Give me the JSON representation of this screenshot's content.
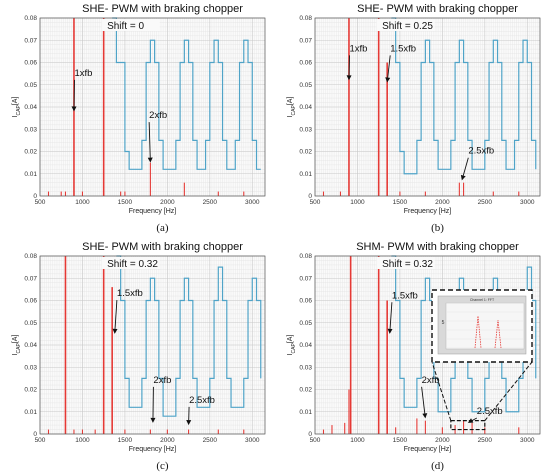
{
  "panels": [
    {
      "title": "SHE- PWM with braking chopper",
      "shift_label": "Shift = 0",
      "caption": "(a)",
      "chart_data": {
        "type": "bar",
        "xlabel": "Frequency [Hz]",
        "ylabel_main": "I",
        "ylabel_sub": "CAP",
        "ylabel_unit": "[A]",
        "xlim": [
          500,
          3150
        ],
        "ylim": [
          0,
          0.08
        ],
        "xticks": [
          500,
          1000,
          1500,
          2000,
          2500,
          3000
        ],
        "yticks": [
          0,
          0.01,
          0.02,
          0.03,
          0.04,
          0.05,
          0.06,
          0.07,
          0.08
        ],
        "grid": true,
        "spectrum_color": "#e53935",
        "limit_color": "#4fa3c7",
        "spectrum_series": [
          [
            600,
            0.002
          ],
          [
            750,
            0.002
          ],
          [
            800,
            0.002
          ],
          [
            900,
            0.08
          ],
          [
            1000,
            0.002
          ],
          [
            1250,
            0.08
          ],
          [
            1450,
            0.002
          ],
          [
            1500,
            0.002
          ],
          [
            1800,
            0.015
          ],
          [
            2200,
            0.006
          ],
          [
            2600,
            0.002
          ],
          [
            2900,
            0.002
          ]
        ],
        "limit_series": [
          [
            1350,
            0.08
          ],
          [
            1400,
            0.06
          ],
          [
            1500,
            0.02
          ],
          [
            1550,
            0.012
          ],
          [
            1650,
            0.012
          ],
          [
            1700,
            0.025
          ],
          [
            1750,
            0.06
          ],
          [
            1800,
            0.07
          ],
          [
            1850,
            0.06
          ],
          [
            1900,
            0.025
          ],
          [
            1950,
            0.012
          ],
          [
            2050,
            0.012
          ],
          [
            2100,
            0.025
          ],
          [
            2150,
            0.06
          ],
          [
            2200,
            0.07
          ],
          [
            2250,
            0.06
          ],
          [
            2300,
            0.025
          ],
          [
            2350,
            0.012
          ],
          [
            2400,
            0.012
          ],
          [
            2450,
            0.025
          ],
          [
            2500,
            0.06
          ],
          [
            2550,
            0.07
          ],
          [
            2600,
            0.06
          ],
          [
            2650,
            0.025
          ],
          [
            2700,
            0.012
          ],
          [
            2750,
            0.012
          ],
          [
            2800,
            0.025
          ],
          [
            2850,
            0.06
          ],
          [
            2900,
            0.07
          ],
          [
            2950,
            0.06
          ],
          [
            3000,
            0.025
          ],
          [
            3050,
            0.012
          ],
          [
            3100,
            0.012
          ]
        ],
        "annotations": [
          {
            "label": "1xfb",
            "x": 900,
            "y": 0.038,
            "text_x": 1000,
            "text_y": 0.054
          },
          {
            "label": "2xfb",
            "x": 1800,
            "y": 0.015,
            "text_x": 1880,
            "text_y": 0.035
          }
        ]
      }
    },
    {
      "title": "SHE- PWM with braking chopper",
      "shift_label": "Shift = 0.25",
      "caption": "(b)",
      "chart_data": {
        "type": "bar",
        "xlabel": "Frequency [Hz]",
        "ylabel_main": "I",
        "ylabel_sub": "CAP",
        "ylabel_unit": "[A]",
        "xlim": [
          500,
          3150
        ],
        "ylim": [
          0,
          0.08
        ],
        "xticks": [
          500,
          1000,
          1500,
          2000,
          2500,
          3000
        ],
        "yticks": [
          0,
          0.01,
          0.02,
          0.03,
          0.04,
          0.05,
          0.06,
          0.07,
          0.08
        ],
        "grid": true,
        "spectrum_color": "#e53935",
        "limit_color": "#4fa3c7",
        "spectrum_series": [
          [
            600,
            0.002
          ],
          [
            800,
            0.002
          ],
          [
            900,
            0.08
          ],
          [
            1250,
            0.08
          ],
          [
            1350,
            0.06
          ],
          [
            1500,
            0.002
          ],
          [
            1800,
            0.002
          ],
          [
            2200,
            0.006
          ],
          [
            2250,
            0.006
          ],
          [
            2600,
            0.002
          ],
          [
            2900,
            0.002
          ]
        ],
        "limit_series": [
          [
            1400,
            0.08
          ],
          [
            1450,
            0.06
          ],
          [
            1500,
            0.02
          ],
          [
            1550,
            0.01
          ],
          [
            1650,
            0.01
          ],
          [
            1700,
            0.025
          ],
          [
            1750,
            0.06
          ],
          [
            1800,
            0.07
          ],
          [
            1850,
            0.06
          ],
          [
            1900,
            0.025
          ],
          [
            1950,
            0.012
          ],
          [
            2050,
            0.012
          ],
          [
            2100,
            0.025
          ],
          [
            2150,
            0.06
          ],
          [
            2200,
            0.07
          ],
          [
            2250,
            0.06
          ],
          [
            2300,
            0.025
          ],
          [
            2350,
            0.012
          ],
          [
            2450,
            0.012
          ],
          [
            2500,
            0.025
          ],
          [
            2550,
            0.06
          ],
          [
            2600,
            0.07
          ],
          [
            2650,
            0.06
          ],
          [
            2700,
            0.025
          ],
          [
            2750,
            0.012
          ],
          [
            2800,
            0.012
          ],
          [
            2850,
            0.025
          ],
          [
            2900,
            0.06
          ],
          [
            2950,
            0.07
          ],
          [
            3000,
            0.06
          ],
          [
            3050,
            0.025
          ],
          [
            3100,
            0.012
          ]
        ],
        "annotations": [
          {
            "label": "1xfb",
            "x": 900,
            "y": 0.052,
            "text_x": 1000,
            "text_y": 0.065
          },
          {
            "label": "1.5xfb",
            "x": 1350,
            "y": 0.051,
            "text_x": 1480,
            "text_y": 0.065
          },
          {
            "label": "2.5xfb",
            "x": 2230,
            "y": 0.007,
            "text_x": 2400,
            "text_y": 0.019
          }
        ]
      }
    },
    {
      "title": "SHE- PWM with braking chopper",
      "shift_label": "Shift = 0.32",
      "caption": "(c)",
      "chart_data": {
        "type": "bar",
        "xlabel": "Frequency [Hz]",
        "ylabel_main": "I",
        "ylabel_sub": "CAP",
        "ylabel_unit": "[A]",
        "xlim": [
          500,
          3150
        ],
        "ylim": [
          0,
          0.08
        ],
        "xticks": [
          500,
          1000,
          1500,
          2000,
          2500,
          3000
        ],
        "yticks": [
          0,
          0.01,
          0.02,
          0.03,
          0.04,
          0.05,
          0.06,
          0.07,
          0.08
        ],
        "grid": true,
        "spectrum_color": "#e53935",
        "limit_color": "#4fa3c7",
        "spectrum_series": [
          [
            600,
            0.002
          ],
          [
            800,
            0.08
          ],
          [
            900,
            0.002
          ],
          [
            1000,
            0.002
          ],
          [
            1150,
            0.002
          ],
          [
            1250,
            0.08
          ],
          [
            1350,
            0.066
          ],
          [
            1500,
            0.002
          ],
          [
            1800,
            0.002
          ],
          [
            2000,
            0.002
          ],
          [
            2250,
            0.002
          ],
          [
            2600,
            0.002
          ],
          [
            2900,
            0.002
          ]
        ],
        "limit_series": [
          [
            1400,
            0.08
          ],
          [
            1450,
            0.06
          ],
          [
            1500,
            0.025
          ],
          [
            1550,
            0.012
          ],
          [
            1650,
            0.012
          ],
          [
            1700,
            0.025
          ],
          [
            1750,
            0.06
          ],
          [
            1800,
            0.07
          ],
          [
            1850,
            0.06
          ],
          [
            1900,
            0.025
          ],
          [
            1950,
            0.008
          ],
          [
            2050,
            0.008
          ],
          [
            2100,
            0.025
          ],
          [
            2150,
            0.06
          ],
          [
            2200,
            0.07
          ],
          [
            2250,
            0.06
          ],
          [
            2300,
            0.025
          ],
          [
            2350,
            0.012
          ],
          [
            2450,
            0.012
          ],
          [
            2500,
            0.025
          ],
          [
            2550,
            0.06
          ],
          [
            2600,
            0.075
          ],
          [
            2650,
            0.06
          ],
          [
            2700,
            0.025
          ],
          [
            2750,
            0.012
          ],
          [
            2850,
            0.012
          ],
          [
            2900,
            0.025
          ],
          [
            2950,
            0.06
          ],
          [
            3000,
            0.07
          ],
          [
            3050,
            0.06
          ],
          [
            3100,
            0.025
          ]
        ],
        "annotations": [
          {
            "label": "1.5xfb",
            "x": 1380,
            "y": 0.045,
            "text_x": 1500,
            "text_y": 0.062
          },
          {
            "label": "2xfb",
            "x": 1830,
            "y": 0.005,
            "text_x": 1930,
            "text_y": 0.023
          },
          {
            "label": "2.5xfb",
            "x": 2250,
            "y": 0.004,
            "text_x": 2350,
            "text_y": 0.014
          }
        ]
      }
    },
    {
      "title": "SHM- PWM with braking chopper",
      "shift_label": "Shift = 0.32",
      "caption": "(d)",
      "chart_data": {
        "type": "bar",
        "xlabel": "Frequency [Hz]",
        "ylabel_main": "I",
        "ylabel_sub": "CAP",
        "ylabel_unit": "[A]",
        "xlim": [
          500,
          3150
        ],
        "ylim": [
          0,
          0.08
        ],
        "xticks": [
          500,
          1000,
          1500,
          2000,
          2500,
          3000
        ],
        "yticks": [
          0,
          0.01,
          0.02,
          0.03,
          0.04,
          0.05,
          0.06,
          0.07,
          0.08
        ],
        "grid": true,
        "spectrum_color": "#e53935",
        "limit_color": "#4fa3c7",
        "spectrum_series": [
          [
            600,
            0.002
          ],
          [
            700,
            0.004
          ],
          [
            850,
            0.005
          ],
          [
            900,
            0.02
          ],
          [
            920,
            0.08
          ],
          [
            1250,
            0.08
          ],
          [
            1350,
            0.06
          ],
          [
            1450,
            0.003
          ],
          [
            1700,
            0.007
          ],
          [
            1800,
            0.006
          ],
          [
            2000,
            0.003
          ],
          [
            2150,
            0.004
          ],
          [
            2250,
            0.006
          ],
          [
            2350,
            0.005
          ],
          [
            2500,
            0.003
          ],
          [
            2900,
            0.003
          ]
        ],
        "limit_series": [
          [
            1400,
            0.08
          ],
          [
            1450,
            0.06
          ],
          [
            1500,
            0.025
          ],
          [
            1550,
            0.012
          ],
          [
            1650,
            0.012
          ],
          [
            1700,
            0.025
          ],
          [
            1750,
            0.06
          ],
          [
            1800,
            0.07
          ],
          [
            1850,
            0.06
          ],
          [
            1900,
            0.025
          ],
          [
            1950,
            0.01
          ],
          [
            2050,
            0.01
          ],
          [
            2100,
            0.025
          ],
          [
            2150,
            0.06
          ],
          [
            2200,
            0.07
          ],
          [
            2250,
            0.06
          ],
          [
            2300,
            0.025
          ],
          [
            2350,
            0.01
          ],
          [
            2450,
            0.01
          ],
          [
            2500,
            0.025
          ],
          [
            2550,
            0.06
          ],
          [
            2600,
            0.07
          ],
          [
            2650,
            0.06
          ],
          [
            2700,
            0.025
          ],
          [
            2750,
            0.01
          ],
          [
            2850,
            0.01
          ],
          [
            2900,
            0.025
          ],
          [
            2950,
            0.06
          ],
          [
            3000,
            0.075
          ],
          [
            3050,
            0.06
          ],
          [
            3100,
            0.025
          ]
        ],
        "annotations": [
          {
            "label": "1.5xfb",
            "x": 1380,
            "y": 0.045,
            "text_x": 1500,
            "text_y": 0.061
          },
          {
            "label": "2xfb",
            "x": 1800,
            "y": 0.007,
            "text_x": 1850,
            "text_y": 0.023
          },
          {
            "label": "2.5xfb",
            "x": 2300,
            "y": 0.005,
            "text_x": 2500,
            "text_y": 0.009
          }
        ],
        "inset": {
          "title": "Channel 1: FFT",
          "y_label": "5"
        }
      }
    }
  ]
}
